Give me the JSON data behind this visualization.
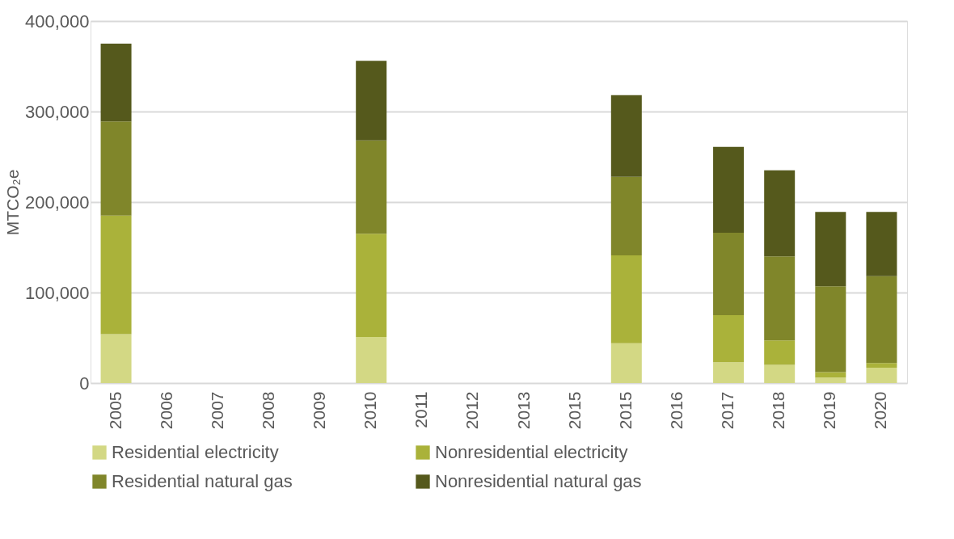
{
  "chart_data": {
    "type": "bar",
    "stacked": true,
    "ylabel": "MTCO₂e",
    "categories": [
      "2005",
      "2006",
      "2007",
      "2008",
      "2009",
      "2010",
      "2011",
      "2012",
      "2013",
      "2015",
      "2015",
      "2016",
      "2017",
      "2018",
      "2019",
      "2020"
    ],
    "series": [
      {
        "name": "Residential electricity",
        "color": "#d3d884",
        "values": [
          54000,
          null,
          null,
          null,
          null,
          51000,
          null,
          null,
          null,
          null,
          44000,
          null,
          23000,
          20000,
          6000,
          17000
        ]
      },
      {
        "name": "Nonresidential electricity",
        "color": "#aab23a",
        "values": [
          131000,
          null,
          null,
          null,
          null,
          114000,
          null,
          null,
          null,
          null,
          97000,
          null,
          52000,
          27000,
          6000,
          5000
        ]
      },
      {
        "name": "Residential natural gas",
        "color": "#80862a",
        "values": [
          104000,
          null,
          null,
          null,
          null,
          103000,
          null,
          null,
          null,
          null,
          87000,
          null,
          91000,
          93000,
          95000,
          96000
        ]
      },
      {
        "name": "Nonresidential natural gas",
        "color": "#55591c",
        "values": [
          86000,
          null,
          null,
          null,
          null,
          88000,
          null,
          null,
          null,
          null,
          90000,
          null,
          95000,
          95000,
          82000,
          71000
        ]
      }
    ],
    "ylim": [
      0,
      400000
    ],
    "yticks": [
      0,
      {
        "value": 100000,
        "label": "100,000"
      },
      {
        "value": 200000,
        "label": "200,000"
      },
      {
        "value": 300000,
        "label": "300,000"
      },
      {
        "value": 400000,
        "label": "400,000"
      }
    ],
    "grid": "y",
    "legend": "bottom"
  }
}
